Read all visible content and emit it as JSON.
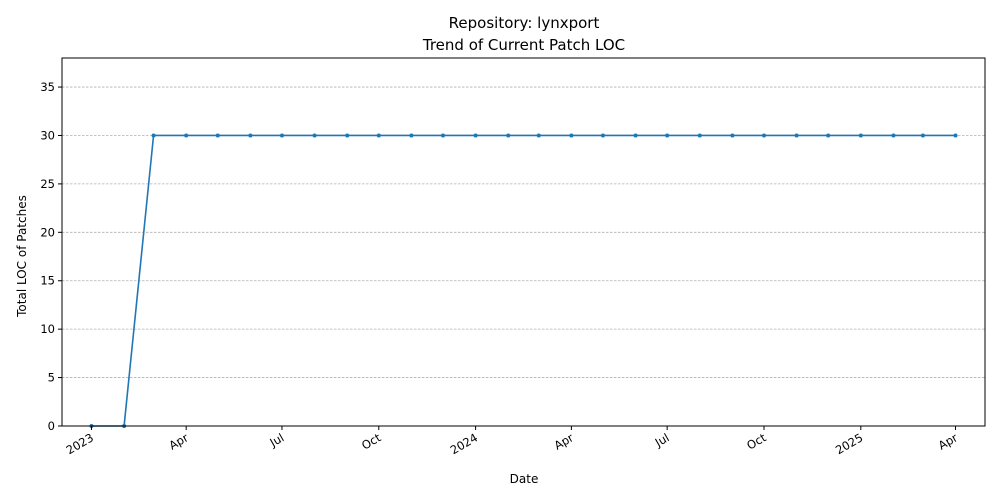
{
  "chart_data": {
    "type": "line",
    "title": "Repository: lynxport",
    "subtitle": "Trend of Current Patch LOC",
    "xlabel": "Date",
    "ylabel": "Total LOC of Patches",
    "ylim": [
      0,
      38
    ],
    "xlim": [
      "2022-12-04",
      "2025-04-29"
    ],
    "yticks": [
      0,
      5,
      10,
      15,
      20,
      25,
      30,
      35
    ],
    "xticks": [
      {
        "date": "2023-01-01",
        "label": "2023"
      },
      {
        "date": "2023-04-01",
        "label": "Apr"
      },
      {
        "date": "2023-07-01",
        "label": "Jul"
      },
      {
        "date": "2023-10-01",
        "label": "Oct"
      },
      {
        "date": "2024-01-01",
        "label": "2024"
      },
      {
        "date": "2024-04-01",
        "label": "Apr"
      },
      {
        "date": "2024-07-01",
        "label": "Jul"
      },
      {
        "date": "2024-10-01",
        "label": "Oct"
      },
      {
        "date": "2025-01-01",
        "label": "2025"
      },
      {
        "date": "2025-04-01",
        "label": "Apr"
      }
    ],
    "grid": "y-dashed",
    "series": [
      {
        "color": "#1f77b4",
        "points": [
          {
            "x": "2023-01-01",
            "y": 0
          },
          {
            "x": "2023-02-01",
            "y": 0
          },
          {
            "x": "2023-03-01",
            "y": 30
          },
          {
            "x": "2023-04-01",
            "y": 30
          },
          {
            "x": "2023-05-01",
            "y": 30
          },
          {
            "x": "2023-06-01",
            "y": 30
          },
          {
            "x": "2023-07-01",
            "y": 30
          },
          {
            "x": "2023-08-01",
            "y": 30
          },
          {
            "x": "2023-09-01",
            "y": 30
          },
          {
            "x": "2023-10-01",
            "y": 30
          },
          {
            "x": "2023-11-01",
            "y": 30
          },
          {
            "x": "2023-12-01",
            "y": 30
          },
          {
            "x": "2024-01-01",
            "y": 30
          },
          {
            "x": "2024-02-01",
            "y": 30
          },
          {
            "x": "2024-03-01",
            "y": 30
          },
          {
            "x": "2024-04-01",
            "y": 30
          },
          {
            "x": "2024-05-01",
            "y": 30
          },
          {
            "x": "2024-06-01",
            "y": 30
          },
          {
            "x": "2024-07-01",
            "y": 30
          },
          {
            "x": "2024-08-01",
            "y": 30
          },
          {
            "x": "2024-09-01",
            "y": 30
          },
          {
            "x": "2024-10-01",
            "y": 30
          },
          {
            "x": "2024-11-01",
            "y": 30
          },
          {
            "x": "2024-12-01",
            "y": 30
          },
          {
            "x": "2025-01-01",
            "y": 30
          },
          {
            "x": "2025-02-01",
            "y": 30
          },
          {
            "x": "2025-03-01",
            "y": 30
          },
          {
            "x": "2025-04-01",
            "y": 30
          }
        ]
      }
    ]
  }
}
